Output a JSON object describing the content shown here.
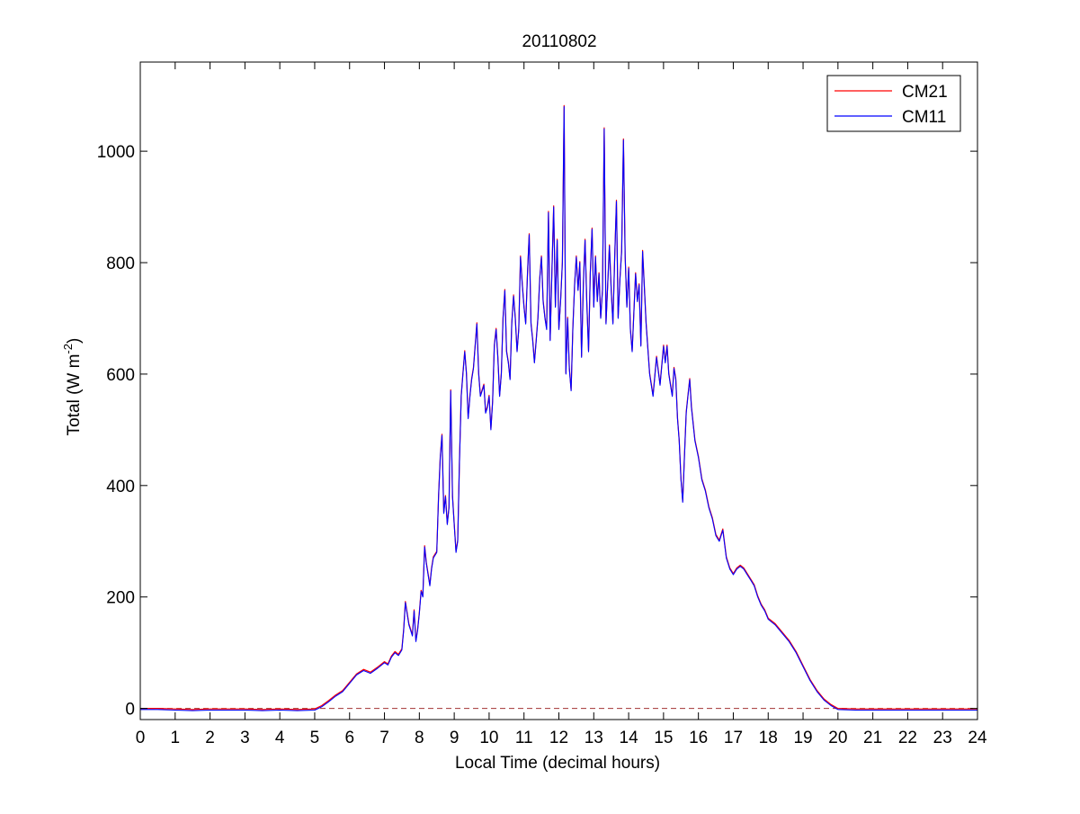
{
  "chart_data": {
    "type": "line",
    "title": "20110802",
    "xlabel": "Local Time (decimal hours)",
    "ylabel": {
      "prefix": "Total (W m",
      "superscript": "-2",
      "suffix": ")"
    },
    "xlim": [
      0,
      24
    ],
    "ylim": [
      -20,
      1160
    ],
    "xticks": [
      0,
      1,
      2,
      3,
      4,
      5,
      6,
      7,
      8,
      9,
      10,
      11,
      12,
      13,
      14,
      15,
      16,
      17,
      18,
      19,
      20,
      21,
      22,
      23,
      24
    ],
    "yticks": [
      0,
      200,
      400,
      600,
      800,
      1000
    ],
    "grid": false,
    "legend_position": "top-right",
    "zero_reference_line": {
      "y": 0,
      "style": "dashed",
      "color": "#a33333"
    },
    "series": [
      {
        "name": "CM21",
        "color": "#ff0000"
      },
      {
        "name": "CM11",
        "color": "#0000ff"
      }
    ],
    "x": [
      0,
      0.5,
      1,
      1.5,
      2,
      2.5,
      3,
      3.5,
      4,
      4.5,
      5,
      5.2,
      5.4,
      5.6,
      5.8,
      6,
      6.2,
      6.4,
      6.6,
      6.8,
      7,
      7.1,
      7.2,
      7.3,
      7.4,
      7.5,
      7.55,
      7.6,
      7.7,
      7.8,
      7.85,
      7.9,
      7.95,
      8,
      8.05,
      8.1,
      8.15,
      8.2,
      8.3,
      8.35,
      8.4,
      8.5,
      8.55,
      8.6,
      8.65,
      8.7,
      8.75,
      8.8,
      8.85,
      8.9,
      8.95,
      9,
      9.05,
      9.1,
      9.15,
      9.2,
      9.25,
      9.3,
      9.35,
      9.4,
      9.45,
      9.5,
      9.55,
      9.6,
      9.65,
      9.7,
      9.75,
      9.8,
      9.85,
      9.9,
      9.95,
      10,
      10.05,
      10.1,
      10.15,
      10.2,
      10.25,
      10.3,
      10.35,
      10.4,
      10.45,
      10.5,
      10.55,
      10.6,
      10.65,
      10.7,
      10.75,
      10.8,
      10.85,
      10.9,
      10.95,
      11,
      11.05,
      11.1,
      11.15,
      11.2,
      11.25,
      11.3,
      11.35,
      11.4,
      11.45,
      11.5,
      11.55,
      11.6,
      11.65,
      11.7,
      11.75,
      11.8,
      11.85,
      11.9,
      11.95,
      12,
      12.05,
      12.1,
      12.15,
      12.2,
      12.25,
      12.3,
      12.35,
      12.4,
      12.45,
      12.5,
      12.55,
      12.6,
      12.65,
      12.7,
      12.75,
      12.8,
      12.85,
      12.9,
      12.95,
      13,
      13.05,
      13.1,
      13.15,
      13.2,
      13.25,
      13.3,
      13.35,
      13.4,
      13.45,
      13.5,
      13.55,
      13.6,
      13.65,
      13.7,
      13.75,
      13.8,
      13.85,
      13.9,
      13.95,
      14,
      14.05,
      14.1,
      14.15,
      14.2,
      14.25,
      14.3,
      14.35,
      14.4,
      14.5,
      14.6,
      14.7,
      14.8,
      14.9,
      15,
      15.05,
      15.1,
      15.15,
      15.2,
      15.25,
      15.3,
      15.35,
      15.4,
      15.45,
      15.5,
      15.55,
      15.6,
      15.65,
      15.7,
      15.75,
      15.8,
      15.9,
      16,
      16.1,
      16.2,
      16.3,
      16.4,
      16.5,
      16.6,
      16.7,
      16.8,
      16.9,
      17,
      17.1,
      17.2,
      17.3,
      17.4,
      17.5,
      17.6,
      17.7,
      17.8,
      17.9,
      18,
      18.2,
      18.4,
      18.6,
      18.8,
      19,
      19.2,
      19.4,
      19.6,
      19.8,
      20,
      20.5,
      21,
      21.5,
      22,
      22.5,
      23,
      23.5,
      24
    ],
    "values_cm11": [
      -2,
      -2,
      -3,
      -4,
      -3,
      -3,
      -3,
      -4,
      -3,
      -4,
      -3,
      3,
      12,
      22,
      30,
      45,
      60,
      68,
      63,
      72,
      82,
      78,
      92,
      100,
      95,
      105,
      140,
      190,
      150,
      130,
      175,
      120,
      140,
      170,
      210,
      200,
      290,
      260,
      220,
      250,
      270,
      280,
      380,
      450,
      490,
      350,
      380,
      330,
      360,
      570,
      380,
      330,
      280,
      300,
      440,
      560,
      600,
      640,
      600,
      520,
      560,
      590,
      610,
      650,
      690,
      600,
      560,
      570,
      580,
      530,
      540,
      560,
      500,
      550,
      650,
      680,
      630,
      560,
      600,
      700,
      750,
      640,
      620,
      590,
      690,
      740,
      700,
      640,
      680,
      810,
      760,
      720,
      690,
      780,
      850,
      690,
      660,
      620,
      660,
      700,
      770,
      810,
      730,
      700,
      680,
      890,
      660,
      780,
      900,
      720,
      840,
      680,
      730,
      800,
      1080,
      600,
      700,
      610,
      570,
      680,
      760,
      810,
      750,
      800,
      630,
      760,
      840,
      730,
      640,
      780,
      860,
      720,
      810,
      730,
      780,
      700,
      750,
      1040,
      690,
      760,
      830,
      750,
      690,
      810,
      910,
      700,
      770,
      820,
      1020,
      810,
      720,
      790,
      680,
      640,
      710,
      780,
      730,
      760,
      650,
      820,
      690,
      600,
      560,
      630,
      580,
      650,
      620,
      650,
      600,
      580,
      560,
      610,
      590,
      520,
      480,
      410,
      370,
      450,
      530,
      560,
      590,
      540,
      480,
      450,
      410,
      390,
      360,
      340,
      310,
      300,
      320,
      270,
      250,
      240,
      250,
      255,
      250,
      240,
      230,
      220,
      200,
      185,
      175,
      160,
      150,
      135,
      120,
      100,
      75,
      50,
      30,
      15,
      5,
      -2,
      -3,
      -3,
      -3,
      -3,
      -3,
      -3,
      -3,
      -3
    ],
    "cm21_offset": 2
  }
}
